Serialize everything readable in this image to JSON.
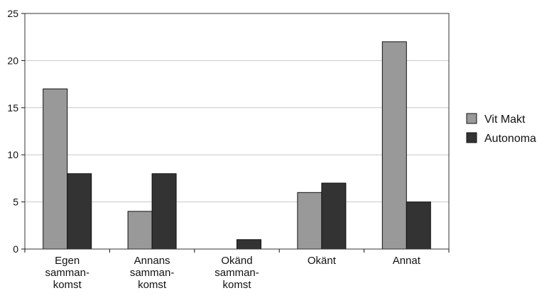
{
  "chart_data": {
    "type": "bar",
    "categories": [
      [
        "Egen",
        "samman-",
        "komst"
      ],
      [
        "Annans",
        "samman-",
        "komst"
      ],
      [
        "Okänd",
        "samman-",
        "komst"
      ],
      [
        "Okänt"
      ],
      [
        "Annat"
      ]
    ],
    "series": [
      {
        "name": "Vit Makt",
        "values": [
          17,
          4,
          0,
          6,
          22
        ],
        "color": "#999999"
      },
      {
        "name": "Autonoma",
        "values": [
          8,
          8,
          1,
          7,
          5
        ],
        "color": "#333333"
      }
    ],
    "ylim": [
      0,
      25
    ],
    "yticks": [
      0,
      5,
      10,
      15,
      20,
      25
    ],
    "grid": true,
    "legend": "right",
    "title": "",
    "xlabel": "",
    "ylabel": ""
  }
}
